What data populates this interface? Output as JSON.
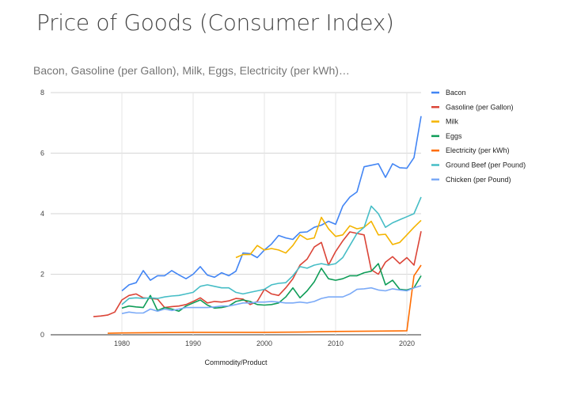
{
  "page": {
    "title": "Price of Goods (Consumer Index)"
  },
  "chart_data": {
    "type": "line",
    "title": "Bacon, Gasoline (per Gallon), Milk, Eggs, Electricity (per kWh)…",
    "xlabel": "Commodity/Product",
    "ylabel": "",
    "xlim": [
      1970,
      2022
    ],
    "ylim": [
      0,
      8
    ],
    "x_ticks": [
      "1980",
      "1990",
      "2000",
      "2010",
      "2020"
    ],
    "y_ticks": [
      "0",
      "2",
      "4",
      "6",
      "8"
    ],
    "grid": true,
    "legend": "right",
    "series": [
      {
        "name": "Bacon",
        "color": "#4285f4",
        "points": [
          [
            1980,
            1.45
          ],
          [
            1981,
            1.65
          ],
          [
            1982,
            1.72
          ],
          [
            1983,
            2.12
          ],
          [
            1984,
            1.8
          ],
          [
            1985,
            1.95
          ],
          [
            1986,
            1.95
          ],
          [
            1987,
            2.12
          ],
          [
            1988,
            1.98
          ],
          [
            1989,
            1.85
          ],
          [
            1990,
            2.0
          ],
          [
            1991,
            2.25
          ],
          [
            1992,
            1.97
          ],
          [
            1993,
            1.9
          ],
          [
            1994,
            2.05
          ],
          [
            1995,
            1.95
          ],
          [
            1996,
            2.1
          ],
          [
            1997,
            2.7
          ],
          [
            1998,
            2.68
          ],
          [
            1999,
            2.55
          ],
          [
            2000,
            2.8
          ],
          [
            2001,
            3.0
          ],
          [
            2002,
            3.28
          ],
          [
            2003,
            3.2
          ],
          [
            2004,
            3.15
          ],
          [
            2005,
            3.38
          ],
          [
            2006,
            3.4
          ],
          [
            2007,
            3.55
          ],
          [
            2008,
            3.62
          ],
          [
            2009,
            3.75
          ],
          [
            2010,
            3.65
          ],
          [
            2011,
            4.25
          ],
          [
            2012,
            4.55
          ],
          [
            2013,
            4.72
          ],
          [
            2014,
            5.55
          ],
          [
            2015,
            5.6
          ],
          [
            2016,
            5.65
          ],
          [
            2017,
            5.2
          ],
          [
            2018,
            5.65
          ],
          [
            2019,
            5.52
          ],
          [
            2020,
            5.5
          ],
          [
            2021,
            5.85
          ],
          [
            2022,
            7.22
          ]
        ]
      },
      {
        "name": "Gasoline (per Gallon)",
        "color": "#db4437",
        "points": [
          [
            1976,
            0.6
          ],
          [
            1977,
            0.62
          ],
          [
            1978,
            0.65
          ],
          [
            1979,
            0.75
          ],
          [
            1980,
            1.15
          ],
          [
            1981,
            1.3
          ],
          [
            1982,
            1.35
          ],
          [
            1983,
            1.22
          ],
          [
            1984,
            1.2
          ],
          [
            1985,
            1.18
          ],
          [
            1986,
            0.9
          ],
          [
            1987,
            0.93
          ],
          [
            1988,
            0.95
          ],
          [
            1989,
            1.0
          ],
          [
            1990,
            1.1
          ],
          [
            1991,
            1.22
          ],
          [
            1992,
            1.05
          ],
          [
            1993,
            1.1
          ],
          [
            1994,
            1.08
          ],
          [
            1995,
            1.12
          ],
          [
            1996,
            1.2
          ],
          [
            1997,
            1.18
          ],
          [
            1998,
            1.0
          ],
          [
            1999,
            1.1
          ],
          [
            2000,
            1.5
          ],
          [
            2001,
            1.35
          ],
          [
            2002,
            1.3
          ],
          [
            2003,
            1.55
          ],
          [
            2004,
            1.85
          ],
          [
            2005,
            2.3
          ],
          [
            2006,
            2.5
          ],
          [
            2007,
            2.9
          ],
          [
            2008,
            3.05
          ],
          [
            2009,
            2.3
          ],
          [
            2010,
            2.75
          ],
          [
            2011,
            3.1
          ],
          [
            2012,
            3.4
          ],
          [
            2013,
            3.35
          ],
          [
            2014,
            3.3
          ],
          [
            2015,
            2.15
          ],
          [
            2016,
            2.0
          ],
          [
            2017,
            2.4
          ],
          [
            2018,
            2.58
          ],
          [
            2019,
            2.35
          ],
          [
            2020,
            2.55
          ],
          [
            2021,
            2.3
          ],
          [
            2022,
            3.42
          ]
        ]
      },
      {
        "name": "Milk",
        "color": "#f4b400",
        "points": [
          [
            1996,
            2.55
          ],
          [
            1997,
            2.65
          ],
          [
            1998,
            2.65
          ],
          [
            1999,
            2.95
          ],
          [
            2000,
            2.8
          ],
          [
            2001,
            2.85
          ],
          [
            2002,
            2.8
          ],
          [
            2003,
            2.7
          ],
          [
            2004,
            2.95
          ],
          [
            2005,
            3.3
          ],
          [
            2006,
            3.15
          ],
          [
            2007,
            3.2
          ],
          [
            2008,
            3.88
          ],
          [
            2009,
            3.5
          ],
          [
            2010,
            3.25
          ],
          [
            2011,
            3.3
          ],
          [
            2012,
            3.6
          ],
          [
            2013,
            3.5
          ],
          [
            2014,
            3.55
          ],
          [
            2015,
            3.75
          ],
          [
            2016,
            3.3
          ],
          [
            2017,
            3.32
          ],
          [
            2018,
            2.98
          ],
          [
            2019,
            3.05
          ],
          [
            2020,
            3.3
          ],
          [
            2021,
            3.55
          ],
          [
            2022,
            3.78
          ]
        ]
      },
      {
        "name": "Eggs",
        "color": "#0f9d58",
        "points": [
          [
            1980,
            0.88
          ],
          [
            1981,
            0.95
          ],
          [
            1982,
            0.92
          ],
          [
            1983,
            0.9
          ],
          [
            1984,
            1.3
          ],
          [
            1985,
            0.8
          ],
          [
            1986,
            0.9
          ],
          [
            1987,
            0.85
          ],
          [
            1988,
            0.78
          ],
          [
            1989,
            0.95
          ],
          [
            1990,
            1.05
          ],
          [
            1991,
            1.15
          ],
          [
            1992,
            0.98
          ],
          [
            1993,
            0.88
          ],
          [
            1994,
            0.9
          ],
          [
            1995,
            0.95
          ],
          [
            1996,
            1.1
          ],
          [
            1997,
            1.15
          ],
          [
            1998,
            1.1
          ],
          [
            1999,
            1.0
          ],
          [
            2000,
            0.98
          ],
          [
            2001,
            1.0
          ],
          [
            2002,
            1.05
          ],
          [
            2003,
            1.25
          ],
          [
            2004,
            1.55
          ],
          [
            2005,
            1.22
          ],
          [
            2006,
            1.45
          ],
          [
            2007,
            1.75
          ],
          [
            2008,
            2.2
          ],
          [
            2009,
            1.85
          ],
          [
            2010,
            1.8
          ],
          [
            2011,
            1.85
          ],
          [
            2012,
            1.95
          ],
          [
            2013,
            1.95
          ],
          [
            2014,
            2.05
          ],
          [
            2015,
            2.1
          ],
          [
            2016,
            2.35
          ],
          [
            2017,
            1.65
          ],
          [
            2018,
            1.8
          ],
          [
            2019,
            1.5
          ],
          [
            2020,
            1.48
          ],
          [
            2021,
            1.55
          ],
          [
            2022,
            1.95
          ]
        ]
      },
      {
        "name": "Electricity (per kWh)",
        "color": "#ff6d01",
        "points": [
          [
            1978,
            0.05
          ],
          [
            1980,
            0.06
          ],
          [
            1985,
            0.07
          ],
          [
            1990,
            0.08
          ],
          [
            1995,
            0.08
          ],
          [
            2000,
            0.08
          ],
          [
            2005,
            0.09
          ],
          [
            2010,
            0.11
          ],
          [
            2015,
            0.12
          ],
          [
            2020,
            0.13
          ],
          [
            2021,
            1.95
          ],
          [
            2022,
            2.3
          ]
        ]
      },
      {
        "name": "Ground Beef (per Pound)",
        "color": "#46bdc6",
        "points": [
          [
            1980,
            1.0
          ],
          [
            1981,
            1.2
          ],
          [
            1982,
            1.22
          ],
          [
            1983,
            1.2
          ],
          [
            1984,
            1.22
          ],
          [
            1985,
            1.2
          ],
          [
            1986,
            1.25
          ],
          [
            1987,
            1.28
          ],
          [
            1988,
            1.3
          ],
          [
            1989,
            1.35
          ],
          [
            1990,
            1.4
          ],
          [
            1991,
            1.6
          ],
          [
            1992,
            1.65
          ],
          [
            1993,
            1.6
          ],
          [
            1994,
            1.55
          ],
          [
            1995,
            1.55
          ],
          [
            1996,
            1.4
          ],
          [
            1997,
            1.35
          ],
          [
            1998,
            1.4
          ],
          [
            1999,
            1.45
          ],
          [
            2000,
            1.5
          ],
          [
            2001,
            1.65
          ],
          [
            2002,
            1.7
          ],
          [
            2003,
            1.72
          ],
          [
            2004,
            1.95
          ],
          [
            2005,
            2.25
          ],
          [
            2006,
            2.2
          ],
          [
            2007,
            2.3
          ],
          [
            2008,
            2.35
          ],
          [
            2009,
            2.3
          ],
          [
            2010,
            2.35
          ],
          [
            2011,
            2.55
          ],
          [
            2012,
            2.95
          ],
          [
            2013,
            3.35
          ],
          [
            2014,
            3.55
          ],
          [
            2015,
            4.25
          ],
          [
            2016,
            4.0
          ],
          [
            2017,
            3.55
          ],
          [
            2018,
            3.7
          ],
          [
            2019,
            3.8
          ],
          [
            2020,
            3.9
          ],
          [
            2021,
            4.0
          ],
          [
            2022,
            4.55
          ]
        ]
      },
      {
        "name": "Chicken (per Pound)",
        "color": "#7baaf7",
        "points": [
          [
            1980,
            0.7
          ],
          [
            1981,
            0.75
          ],
          [
            1982,
            0.72
          ],
          [
            1983,
            0.72
          ],
          [
            1984,
            0.85
          ],
          [
            1985,
            0.78
          ],
          [
            1986,
            0.85
          ],
          [
            1987,
            0.8
          ],
          [
            1988,
            0.85
          ],
          [
            1989,
            0.9
          ],
          [
            1990,
            0.9
          ],
          [
            1991,
            0.9
          ],
          [
            1992,
            0.9
          ],
          [
            1993,
            0.92
          ],
          [
            1994,
            0.95
          ],
          [
            1995,
            0.95
          ],
          [
            1996,
            1.0
          ],
          [
            1997,
            1.05
          ],
          [
            1998,
            1.05
          ],
          [
            1999,
            1.08
          ],
          [
            2000,
            1.08
          ],
          [
            2001,
            1.1
          ],
          [
            2002,
            1.08
          ],
          [
            2003,
            1.05
          ],
          [
            2004,
            1.05
          ],
          [
            2005,
            1.08
          ],
          [
            2006,
            1.05
          ],
          [
            2007,
            1.1
          ],
          [
            2008,
            1.2
          ],
          [
            2009,
            1.25
          ],
          [
            2010,
            1.25
          ],
          [
            2011,
            1.25
          ],
          [
            2012,
            1.35
          ],
          [
            2013,
            1.5
          ],
          [
            2014,
            1.52
          ],
          [
            2015,
            1.55
          ],
          [
            2016,
            1.48
          ],
          [
            2017,
            1.45
          ],
          [
            2018,
            1.52
          ],
          [
            2019,
            1.48
          ],
          [
            2020,
            1.45
          ],
          [
            2021,
            1.55
          ],
          [
            2022,
            1.62
          ]
        ]
      }
    ]
  }
}
